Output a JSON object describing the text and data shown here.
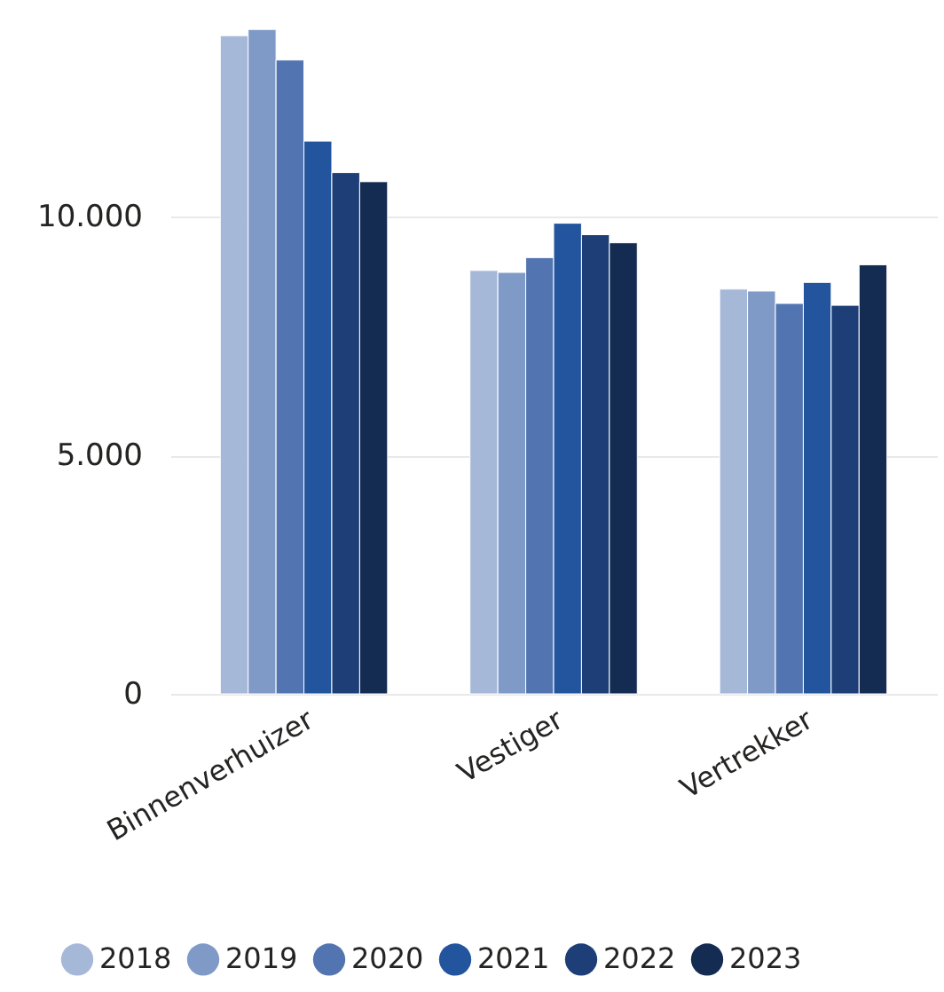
{
  "chart_data": {
    "type": "bar",
    "categories": [
      "Binnenverhuizer",
      "Vestiger",
      "Vertrekker"
    ],
    "series": [
      {
        "name": "2018",
        "color": "#a6b8d8",
        "values": [
          13790,
          8870,
          8480
        ]
      },
      {
        "name": "2019",
        "color": "#7f9ac7",
        "values": [
          13920,
          8830,
          8440
        ]
      },
      {
        "name": "2020",
        "color": "#5275b1",
        "values": [
          13280,
          9140,
          8180
        ]
      },
      {
        "name": "2021",
        "color": "#23559e",
        "values": [
          11580,
          9860,
          8620
        ]
      },
      {
        "name": "2022",
        "color": "#1d3e77",
        "values": [
          10920,
          9620,
          8140
        ]
      },
      {
        "name": "2023",
        "color": "#142b52",
        "values": [
          10730,
          9450,
          8990
        ]
      }
    ],
    "ylim": [
      0,
      14500
    ],
    "yticks": [
      {
        "value": 0,
        "label": "0"
      },
      {
        "value": 5000,
        "label": "5.000"
      },
      {
        "value": 10000,
        "label": "10.000"
      }
    ],
    "grid": "y",
    "legend": "bottom"
  }
}
